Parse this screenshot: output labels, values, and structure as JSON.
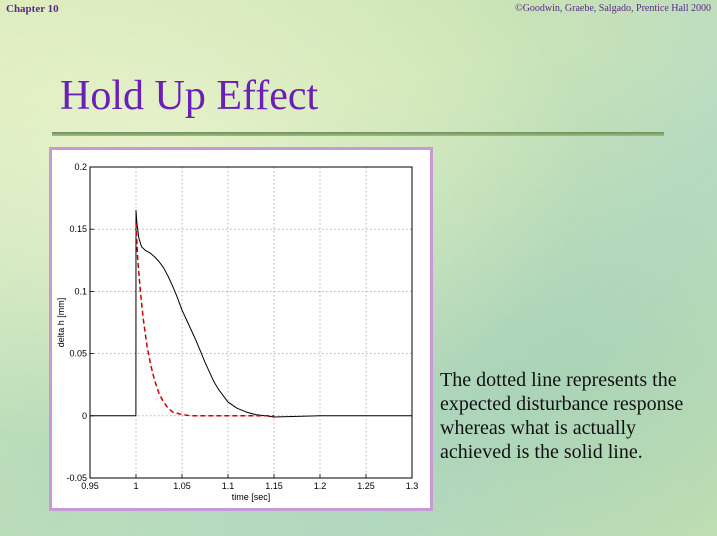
{
  "header": {
    "chapter": "Chapter 10",
    "copyright": "©Goodwin, Graebe, Salgado, Prentice Hall 2000"
  },
  "slide": {
    "title": "Hold Up Effect",
    "caption": "The dotted line represents the expected disturbance response whereas what is actually achieved is the solid line."
  },
  "colors": {
    "title": "#6b1fb8",
    "frame": "#c79ad6",
    "solid_series": "#000000",
    "dotted_series": "#cc0000"
  },
  "chart_data": {
    "type": "line",
    "xlabel": "time [sec]",
    "ylabel": "delta h [mm]",
    "xlim": [
      0.95,
      1.3
    ],
    "ylim": [
      -0.05,
      0.2
    ],
    "xticks": [
      "0.95",
      "1",
      "1.05",
      "1.1",
      "1.15",
      "1.2",
      "1.25",
      "1.3"
    ],
    "yticks": [
      "-0.05",
      "0",
      "0.05",
      "0.1",
      "0.15",
      "0.2"
    ],
    "grid": true,
    "series": [
      {
        "style": "solid",
        "x": [
          0.95,
          0.9999,
          1.0,
          1.001,
          1.003,
          1.006,
          1.01,
          1.015,
          1.02,
          1.025,
          1.03,
          1.035,
          1.04,
          1.045,
          1.05,
          1.055,
          1.06,
          1.065,
          1.07,
          1.075,
          1.08,
          1.085,
          1.09,
          1.095,
          1.1,
          1.11,
          1.12,
          1.13,
          1.14,
          1.15,
          1.2,
          1.25,
          1.3
        ],
        "y": [
          0.0,
          0.0,
          0.165,
          0.155,
          0.143,
          0.136,
          0.133,
          0.131,
          0.128,
          0.124,
          0.119,
          0.112,
          0.104,
          0.095,
          0.085,
          0.077,
          0.069,
          0.061,
          0.052,
          0.043,
          0.035,
          0.027,
          0.021,
          0.016,
          0.011,
          0.006,
          0.003,
          0.001,
          0.0,
          -0.001,
          0.0,
          0.0,
          0.0
        ]
      },
      {
        "style": "dashed",
        "x": [
          1.0,
          1.002,
          1.005,
          1.008,
          1.012,
          1.016,
          1.02,
          1.025,
          1.03,
          1.035,
          1.04,
          1.05,
          1.06,
          1.08,
          1.1,
          1.15
        ],
        "y": [
          0.155,
          0.125,
          0.098,
          0.077,
          0.056,
          0.041,
          0.029,
          0.018,
          0.011,
          0.006,
          0.003,
          0.001,
          0.0,
          0.0,
          0.0,
          0.0
        ]
      }
    ]
  }
}
